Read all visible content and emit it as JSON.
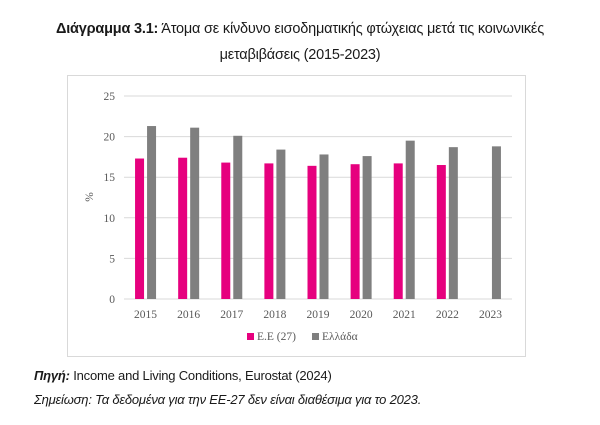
{
  "title": {
    "label": "Διάγραμμα 3.1:",
    "text": "Άτομα σε κίνδυνο εισοδηματικής φτώχειας μετά τις κοινωνικές μεταβιβάσεις (2015-2023)"
  },
  "source": {
    "label": "Πηγή:",
    "text": "Income and Living Conditions, Eurostat (2024)"
  },
  "note": "Σημείωση: Τα δεδομένα για την ΕΕ-27 δεν είναι διαθέσιμα για το 2023.",
  "colors": {
    "eu": "#E6007E",
    "greece": "#7F7F7F",
    "grid": "#d9d9d9",
    "axis_text": "#595959"
  },
  "chart_data": {
    "type": "bar",
    "title": "Άτομα σε κίνδυνο εισοδηματικής φτώχειας μετά τις κοινωνικές μεταβιβάσεις (2015-2023)",
    "xlabel": "",
    "ylabel": "%",
    "ylim": [
      0,
      25
    ],
    "yticks": [
      0,
      5,
      10,
      15,
      20,
      25
    ],
    "grid": true,
    "legend_position": "bottom",
    "categories": [
      "2015",
      "2016",
      "2017",
      "2018",
      "2019",
      "2020",
      "2021",
      "2022",
      "2023"
    ],
    "series": [
      {
        "name": "Ε.Ε (27)",
        "color": "#E6007E",
        "values": [
          17.3,
          17.4,
          16.8,
          16.7,
          16.4,
          16.6,
          16.7,
          16.5,
          null
        ]
      },
      {
        "name": "Ελλάδα",
        "color": "#7F7F7F",
        "values": [
          21.3,
          21.1,
          20.1,
          18.4,
          17.8,
          17.6,
          19.5,
          18.7,
          18.8
        ]
      }
    ]
  }
}
